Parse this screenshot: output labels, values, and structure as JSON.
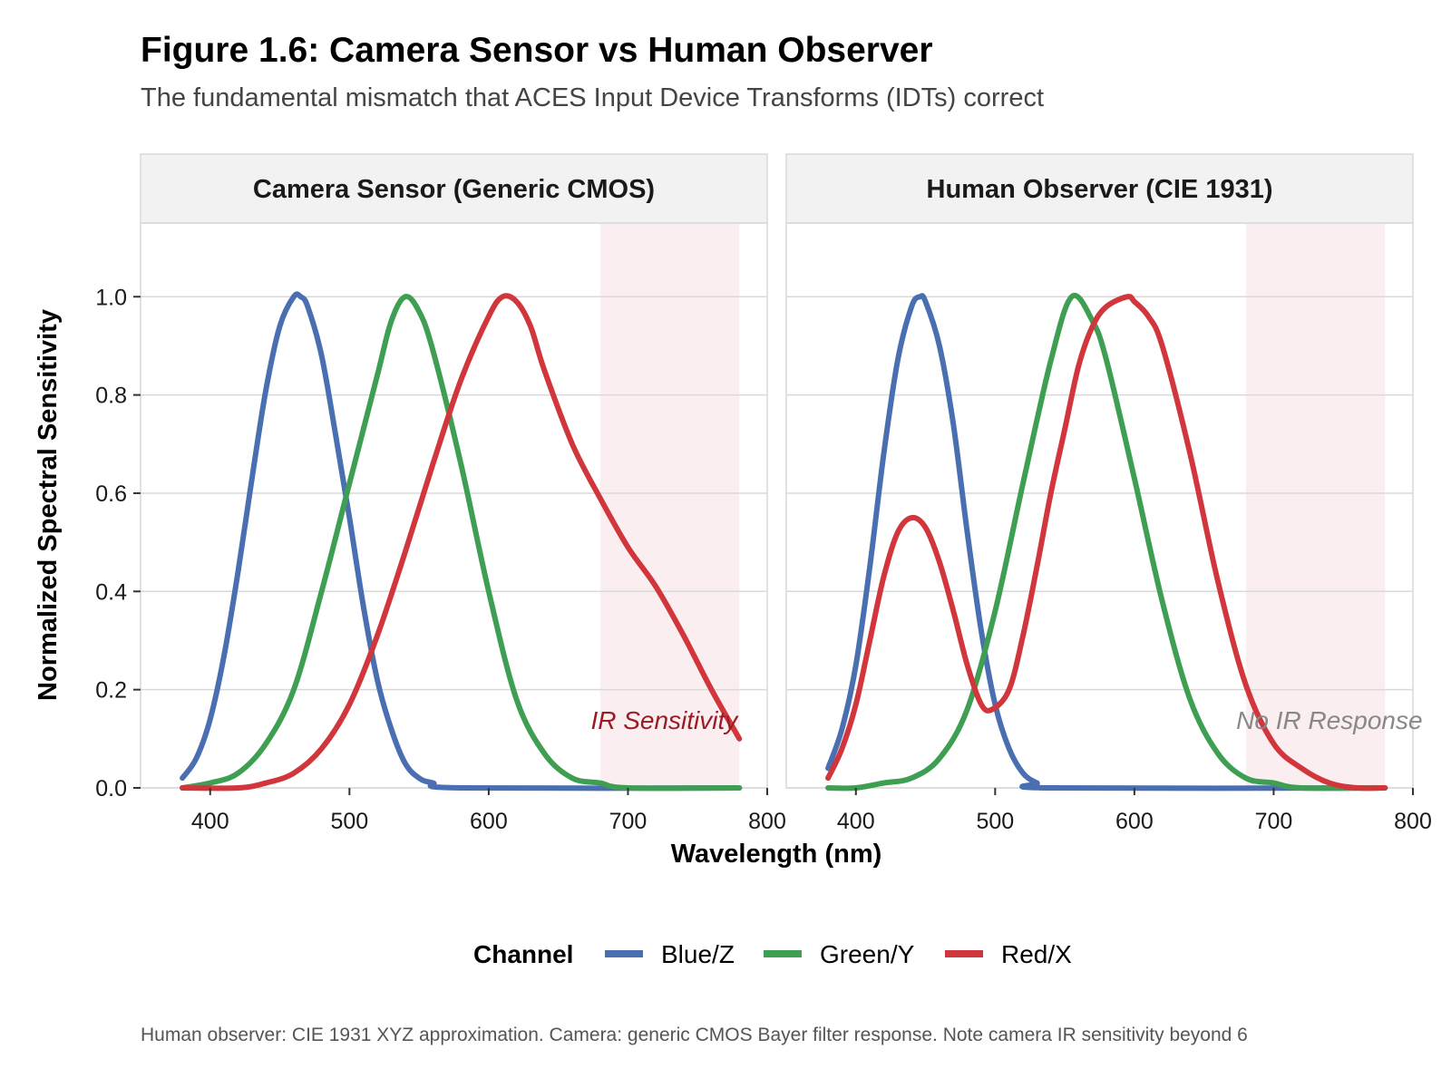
{
  "title": "Figure 1.6: Camera Sensor vs Human Observer",
  "subtitle": "The fundamental mismatch that ACES Input Device Transforms (IDTs) correct",
  "caption": "Human observer: CIE 1931 XYZ approximation. Camera: generic CMOS Bayer filter response. Note camera IR sensitivity beyond 6",
  "chart_data": {
    "type": "line",
    "xlabel": "Wavelength (nm)",
    "ylabel": "Normalized Spectral Sensitivity",
    "xlim": [
      350,
      800
    ],
    "ylim": [
      0,
      1.15
    ],
    "x_ticks": [
      400,
      500,
      600,
      700,
      800
    ],
    "y_ticks": [
      0.0,
      0.2,
      0.4,
      0.6,
      0.8,
      1.0
    ],
    "y_tick_labels": [
      "0.0",
      "0.2",
      "0.4",
      "0.6",
      "0.8",
      "1.0"
    ],
    "legend": {
      "title": "Channel",
      "position": "bottom",
      "entries": [
        {
          "label": "Blue/Z",
          "color": "#4a6fb0"
        },
        {
          "label": "Green/Y",
          "color": "#3e9e52"
        },
        {
          "label": "Red/X",
          "color": "#d0363c"
        }
      ]
    },
    "panels": [
      {
        "strip": "Camera Sensor (Generic CMOS)",
        "ir_band": [
          680,
          780
        ],
        "annotation": {
          "text": "IR Sensitivity",
          "color": "#9b1b24",
          "x": 726,
          "y": 0.12
        },
        "series": [
          {
            "name": "Blue/Z",
            "color": "#4a6fb0",
            "points": [
              [
                380,
                0.02
              ],
              [
                390,
                0.06
              ],
              [
                400,
                0.14
              ],
              [
                410,
                0.27
              ],
              [
                420,
                0.44
              ],
              [
                430,
                0.63
              ],
              [
                440,
                0.81
              ],
              [
                450,
                0.94
              ],
              [
                460,
                1.0
              ],
              [
                465,
                1.0
              ],
              [
                470,
                0.98
              ],
              [
                480,
                0.88
              ],
              [
                490,
                0.72
              ],
              [
                500,
                0.55
              ],
              [
                510,
                0.37
              ],
              [
                520,
                0.22
              ],
              [
                530,
                0.12
              ],
              [
                540,
                0.05
              ],
              [
                550,
                0.02
              ],
              [
                560,
                0.01
              ],
              [
                580,
                0.0
              ],
              [
                780,
                0.0
              ]
            ]
          },
          {
            "name": "Green/Y",
            "color": "#3e9e52",
            "points": [
              [
                380,
                0.0
              ],
              [
                400,
                0.01
              ],
              [
                420,
                0.03
              ],
              [
                440,
                0.09
              ],
              [
                460,
                0.2
              ],
              [
                480,
                0.4
              ],
              [
                500,
                0.62
              ],
              [
                520,
                0.84
              ],
              [
                530,
                0.95
              ],
              [
                540,
                1.0
              ],
              [
                550,
                0.97
              ],
              [
                560,
                0.89
              ],
              [
                580,
                0.66
              ],
              [
                600,
                0.4
              ],
              [
                620,
                0.18
              ],
              [
                640,
                0.07
              ],
              [
                660,
                0.02
              ],
              [
                680,
                0.01
              ],
              [
                700,
                0.0
              ],
              [
                780,
                0.0
              ]
            ]
          },
          {
            "name": "Red/X",
            "color": "#d0363c",
            "points": [
              [
                380,
                0.0
              ],
              [
                420,
                0.0
              ],
              [
                440,
                0.01
              ],
              [
                460,
                0.03
              ],
              [
                480,
                0.08
              ],
              [
                500,
                0.17
              ],
              [
                520,
                0.31
              ],
              [
                540,
                0.48
              ],
              [
                560,
                0.66
              ],
              [
                580,
                0.83
              ],
              [
                600,
                0.96
              ],
              [
                610,
                1.0
              ],
              [
                620,
                0.99
              ],
              [
                630,
                0.94
              ],
              [
                640,
                0.85
              ],
              [
                660,
                0.7
              ],
              [
                680,
                0.59
              ],
              [
                700,
                0.49
              ],
              [
                720,
                0.41
              ],
              [
                740,
                0.31
              ],
              [
                760,
                0.2
              ],
              [
                780,
                0.1
              ]
            ]
          }
        ]
      },
      {
        "strip": "Human Observer (CIE 1931)",
        "ir_band": [
          680,
          780
        ],
        "annotation": {
          "text": "No IR Response",
          "color": "#888888",
          "x": 740,
          "y": 0.12
        },
        "series": [
          {
            "name": "Blue/Z",
            "color": "#4a6fb0",
            "points": [
              [
                380,
                0.04
              ],
              [
                390,
                0.12
              ],
              [
                400,
                0.25
              ],
              [
                410,
                0.45
              ],
              [
                420,
                0.68
              ],
              [
                430,
                0.87
              ],
              [
                440,
                0.98
              ],
              [
                446,
                1.0
              ],
              [
                450,
                0.99
              ],
              [
                460,
                0.9
              ],
              [
                470,
                0.74
              ],
              [
                480,
                0.52
              ],
              [
                490,
                0.32
              ],
              [
                500,
                0.17
              ],
              [
                510,
                0.08
              ],
              [
                520,
                0.03
              ],
              [
                530,
                0.01
              ],
              [
                540,
                0.0
              ],
              [
                780,
                0.0
              ]
            ]
          },
          {
            "name": "Green/Y",
            "color": "#3e9e52",
            "points": [
              [
                380,
                0.0
              ],
              [
                400,
                0.0
              ],
              [
                420,
                0.01
              ],
              [
                440,
                0.02
              ],
              [
                460,
                0.06
              ],
              [
                480,
                0.16
              ],
              [
                500,
                0.36
              ],
              [
                520,
                0.62
              ],
              [
                540,
                0.87
              ],
              [
                555,
                1.0
              ],
              [
                570,
                0.95
              ],
              [
                580,
                0.87
              ],
              [
                600,
                0.63
              ],
              [
                620,
                0.38
              ],
              [
                640,
                0.18
              ],
              [
                660,
                0.07
              ],
              [
                680,
                0.02
              ],
              [
                700,
                0.01
              ],
              [
                720,
                0.0
              ],
              [
                780,
                0.0
              ]
            ]
          },
          {
            "name": "Red/X",
            "color": "#d0363c",
            "points": [
              [
                380,
                0.02
              ],
              [
                390,
                0.08
              ],
              [
                400,
                0.17
              ],
              [
                410,
                0.3
              ],
              [
                420,
                0.43
              ],
              [
                430,
                0.52
              ],
              [
                440,
                0.55
              ],
              [
                450,
                0.53
              ],
              [
                460,
                0.46
              ],
              [
                470,
                0.36
              ],
              [
                480,
                0.25
              ],
              [
                490,
                0.17
              ],
              [
                498,
                0.16
              ],
              [
                510,
                0.2
              ],
              [
                520,
                0.31
              ],
              [
                530,
                0.45
              ],
              [
                540,
                0.6
              ],
              [
                550,
                0.73
              ],
              [
                560,
                0.86
              ],
              [
                570,
                0.94
              ],
              [
                580,
                0.98
              ],
              [
                595,
                1.0
              ],
              [
                600,
                0.99
              ],
              [
                610,
                0.96
              ],
              [
                620,
                0.9
              ],
              [
                640,
                0.68
              ],
              [
                660,
                0.42
              ],
              [
                680,
                0.21
              ],
              [
                700,
                0.09
              ],
              [
                720,
                0.04
              ],
              [
                740,
                0.01
              ],
              [
                760,
                0.0
              ],
              [
                780,
                0.0
              ]
            ]
          }
        ]
      }
    ]
  }
}
